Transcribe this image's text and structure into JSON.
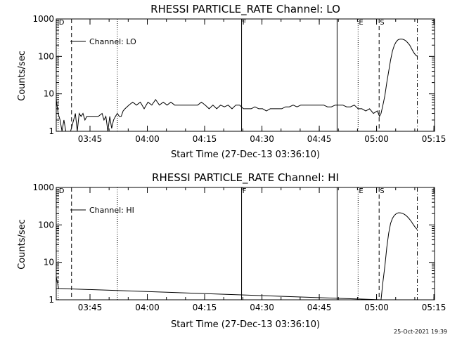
{
  "footer": {
    "timestamp": "25-Oct-2021 19:39"
  },
  "chart_data": [
    {
      "type": "line",
      "title": "RHESSI PARTICLE_RATE Channel: LO",
      "xlabel": "Start Time (27-Dec-13 03:36:10)",
      "ylabel": "Counts/sec",
      "yscale": "log",
      "xlim_minutes": [
        0,
        99
      ],
      "ylim": [
        1,
        1000
      ],
      "x_tick_labels": [
        "03:45",
        "04:00",
        "04:15",
        "04:30",
        "04:45",
        "05:00",
        "05:15"
      ],
      "y_tick_labels": [
        "1",
        "10",
        "100",
        "1000"
      ],
      "legend": {
        "entry": "Channel: LO",
        "position": "top-left"
      },
      "event_markers": [
        {
          "label": "D",
          "minute": 0.5,
          "style": "dotted"
        },
        {
          "label": "",
          "minute": 4,
          "style": "dashed"
        },
        {
          "label": "",
          "minute": 16,
          "style": "dotted"
        },
        {
          "label": "F",
          "minute": 48.5,
          "style": "solid"
        },
        {
          "label": "",
          "minute": 73.5,
          "style": "solid"
        },
        {
          "label": "E",
          "minute": 79,
          "style": "dotted"
        },
        {
          "label": "S",
          "minute": 84.5,
          "style": "dashed"
        },
        {
          "label": "",
          "minute": 94.5,
          "style": "dashdot"
        }
      ],
      "series": [
        {
          "name": "Channel: LO",
          "x": [
            0,
            0.5,
            1,
            1.5,
            2,
            2.5,
            3,
            3.5,
            5,
            5.5,
            6,
            6.5,
            7,
            7.5,
            8,
            9,
            10,
            11,
            12,
            12.5,
            13,
            13.5,
            14,
            14.5,
            15,
            15.5,
            16,
            16.5,
            17,
            17.5,
            18,
            19,
            20,
            21,
            22,
            23,
            24,
            25,
            26,
            27,
            28,
            29,
            30,
            31,
            32,
            33,
            34,
            35,
            36,
            37,
            38,
            39,
            40,
            41,
            42,
            43,
            44,
            45,
            46,
            47,
            48,
            49,
            50,
            51,
            52,
            53,
            54,
            55,
            56,
            57,
            58,
            59,
            60,
            61,
            62,
            63,
            64,
            65,
            66,
            67,
            68,
            69,
            70,
            71,
            72,
            73,
            74,
            75,
            76,
            77,
            78,
            79,
            80,
            81,
            82,
            83,
            84,
            84.3,
            84.6,
            85,
            85.5,
            86,
            86.5,
            87,
            87.5,
            88,
            88.5,
            89,
            89.5,
            90,
            90.5,
            91,
            91.5,
            92,
            92.5,
            93,
            93.5,
            94,
            94.5
          ],
          "y": [
            7,
            3,
            2,
            1,
            2,
            1,
            1,
            0.8,
            3,
            1,
            3,
            2.5,
            3,
            2,
            2.5,
            2.5,
            2.5,
            2.5,
            3,
            2,
            2.5,
            1,
            2.5,
            1.2,
            2,
            2.5,
            3,
            2.5,
            2.5,
            3.5,
            4,
            5,
            6,
            5,
            6,
            4,
            6,
            5,
            7,
            5,
            6,
            5,
            6,
            5,
            5,
            5,
            5,
            5,
            5,
            5,
            6,
            5,
            4,
            5,
            4,
            5,
            4.5,
            5,
            4,
            5,
            5,
            4,
            4,
            4,
            4.5,
            4,
            4,
            3.5,
            4,
            4,
            4,
            4,
            4.5,
            4.5,
            5,
            4.5,
            5,
            5,
            5,
            5,
            5,
            5,
            5,
            4.5,
            4.5,
            5,
            5,
            5,
            4.5,
            4.5,
            5,
            4,
            4,
            3.5,
            4,
            3,
            3.5,
            3,
            2.5,
            3,
            5,
            9,
            20,
            40,
            80,
            140,
            200,
            250,
            280,
            290,
            290,
            280,
            260,
            230,
            200,
            160,
            130,
            110,
            100
          ]
        }
      ]
    },
    {
      "type": "line",
      "title": "RHESSI PARTICLE_RATE Channel: HI",
      "xlabel": "Start Time (27-Dec-13 03:36:10)",
      "ylabel": "Counts/sec",
      "yscale": "log",
      "xlim_minutes": [
        0,
        99
      ],
      "ylim": [
        1,
        1000
      ],
      "x_tick_labels": [
        "03:45",
        "04:00",
        "04:15",
        "04:30",
        "04:45",
        "05:00",
        "05:15"
      ],
      "y_tick_labels": [
        "1",
        "10",
        "100",
        "1000"
      ],
      "legend": {
        "entry": "Channel: HI",
        "position": "top-left"
      },
      "event_markers": [
        {
          "label": "D",
          "minute": 0.5,
          "style": "dotted"
        },
        {
          "label": "",
          "minute": 4,
          "style": "dashed"
        },
        {
          "label": "",
          "minute": 16,
          "style": "dotted"
        },
        {
          "label": "F",
          "minute": 48.5,
          "style": "solid"
        },
        {
          "label": "",
          "minute": 73.5,
          "style": "solid"
        },
        {
          "label": "E",
          "minute": 79,
          "style": "dotted"
        },
        {
          "label": "S",
          "minute": 84.5,
          "style": "dashed"
        },
        {
          "label": "",
          "minute": 94.5,
          "style": "dashdot"
        }
      ],
      "series": [
        {
          "name": "Channel: HI",
          "x": [
            0,
            0.3,
            0.6,
            85,
            85.5,
            86,
            86.5,
            87,
            87.5,
            88,
            88.5,
            89,
            89.5,
            90,
            90.5,
            91,
            91.5,
            92,
            92.5,
            93,
            93.5,
            94,
            94.5
          ],
          "y": [
            4,
            3,
            2,
            1,
            3,
            8,
            25,
            60,
            110,
            150,
            180,
            200,
            210,
            210,
            205,
            195,
            180,
            160,
            140,
            120,
            100,
            85,
            75
          ]
        }
      ]
    }
  ]
}
